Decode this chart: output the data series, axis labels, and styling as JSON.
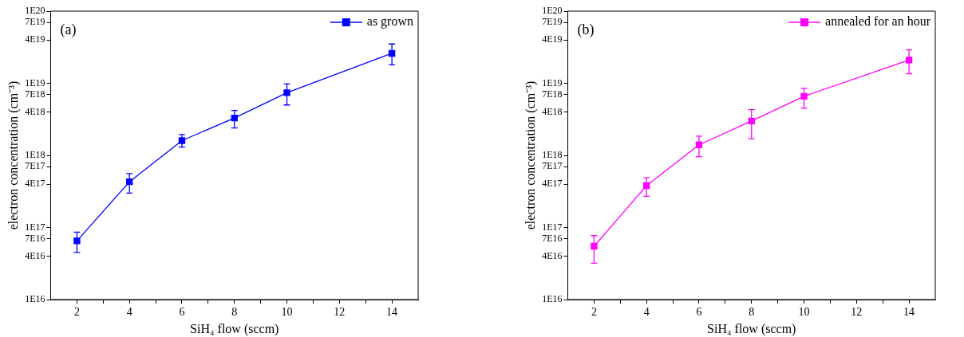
{
  "chart_data": [
    {
      "type": "line",
      "xlabel": "SiH₄ flow (sccm)",
      "ylabel": "electron concentration (cm⁻³)",
      "annotations": [
        "(a)"
      ],
      "log": "y",
      "grid": false,
      "legend": "top right",
      "marker": "square",
      "line_style": "solid",
      "xlim": [
        1,
        15
      ],
      "xticks": [
        2,
        {
          "value": 3,
          "label": null
        },
        4,
        {
          "value": 5,
          "label": null
        },
        6,
        {
          "value": 7,
          "label": null
        },
        8,
        {
          "value": 9,
          "label": null
        },
        10,
        {
          "value": 11,
          "label": null
        },
        12,
        {
          "value": 13,
          "label": null
        },
        14
      ],
      "ylim": [
        1e+16,
        1e+20
      ],
      "yticks": [
        {
          "value": 1e+16,
          "label": "1E16"
        },
        {
          "value": 4e+16,
          "label": "4E16"
        },
        {
          "value": 7e+16,
          "label": "7E16"
        },
        {
          "value": 1e+17,
          "label": "1E17"
        },
        {
          "value": 4e+17,
          "label": "4E17"
        },
        {
          "value": 7e+17,
          "label": "7E17"
        },
        {
          "value": 1e+18,
          "label": "1E18"
        },
        {
          "value": 4e+18,
          "label": "4E18"
        },
        {
          "value": 7e+18,
          "label": "7E18"
        },
        {
          "value": 1e+19,
          "label": "1E19"
        },
        {
          "value": 4e+19,
          "label": "4E19"
        },
        {
          "value": 7e+19,
          "label": "7E19"
        },
        {
          "value": 1e+20,
          "label": "1E20"
        }
      ],
      "x": [
        2,
        4,
        6,
        8,
        10,
        14
      ],
      "series": [
        {
          "name": "as grown",
          "color": "#0000ff",
          "values": [
            6.5e+16,
            4.3e+17,
            1.6e+18,
            3.3e+18,
            7.4e+18,
            2.6e+19
          ],
          "errors": [
            [
              4.5e+16,
              8.6e+16
            ],
            [
              3e+17,
              5.6e+17
            ],
            [
              1.3e+18,
              1.94e+18
            ],
            [
              2.4e+18,
              4.2e+18
            ],
            [
              5e+18,
              9.8e+18
            ],
            [
              1.8e+19,
              3.5e+19
            ]
          ]
        }
      ]
    },
    {
      "type": "line",
      "xlabel": "SiH₄ flow (sccm)",
      "ylabel": "electron concentration (cm⁻³)",
      "annotations": [
        "(b)"
      ],
      "log": "y",
      "grid": false,
      "legend": "top right",
      "marker": "square",
      "line_style": "solid",
      "xlim": [
        1,
        15
      ],
      "xticks": [
        2,
        {
          "value": 3,
          "label": null
        },
        4,
        {
          "value": 5,
          "label": null
        },
        6,
        {
          "value": 7,
          "label": null
        },
        8,
        {
          "value": 9,
          "label": null
        },
        10,
        {
          "value": 11,
          "label": null
        },
        12,
        {
          "value": 13,
          "label": null
        },
        14
      ],
      "ylim": [
        1e+16,
        1e+20
      ],
      "yticks": [
        {
          "value": 1e+16,
          "label": "1E16"
        },
        {
          "value": 4e+16,
          "label": "4E16"
        },
        {
          "value": 7e+16,
          "label": "7E16"
        },
        {
          "value": 1e+17,
          "label": "1E17"
        },
        {
          "value": 4e+17,
          "label": "4E17"
        },
        {
          "value": 7e+17,
          "label": "7E17"
        },
        {
          "value": 1e+18,
          "label": "1E18"
        },
        {
          "value": 4e+18,
          "label": "4E18"
        },
        {
          "value": 7e+18,
          "label": "7E18"
        },
        {
          "value": 1e+19,
          "label": "1E19"
        },
        {
          "value": 4e+19,
          "label": "4E19"
        },
        {
          "value": 7e+19,
          "label": "7E19"
        },
        {
          "value": 1e+20,
          "label": "1E20"
        }
      ],
      "x": [
        2,
        4,
        6,
        8,
        10,
        14
      ],
      "series": [
        {
          "name": "annealed for an hour",
          "color": "#ff00ff",
          "values": [
            5.5e+16,
            3.8e+17,
            1.4e+18,
            3e+18,
            6.6e+18,
            2.1e+19
          ],
          "errors": [
            [
              3.2e+16,
              7.7e+16
            ],
            [
              2.7e+17,
              4.9e+17
            ],
            [
              9.6e+17,
              1.85e+18
            ],
            [
              1.7e+18,
              4.3e+18
            ],
            [
              4.5e+18,
              8.5e+18
            ],
            [
              1.35e+19,
              2.9e+19
            ]
          ]
        }
      ]
    }
  ]
}
